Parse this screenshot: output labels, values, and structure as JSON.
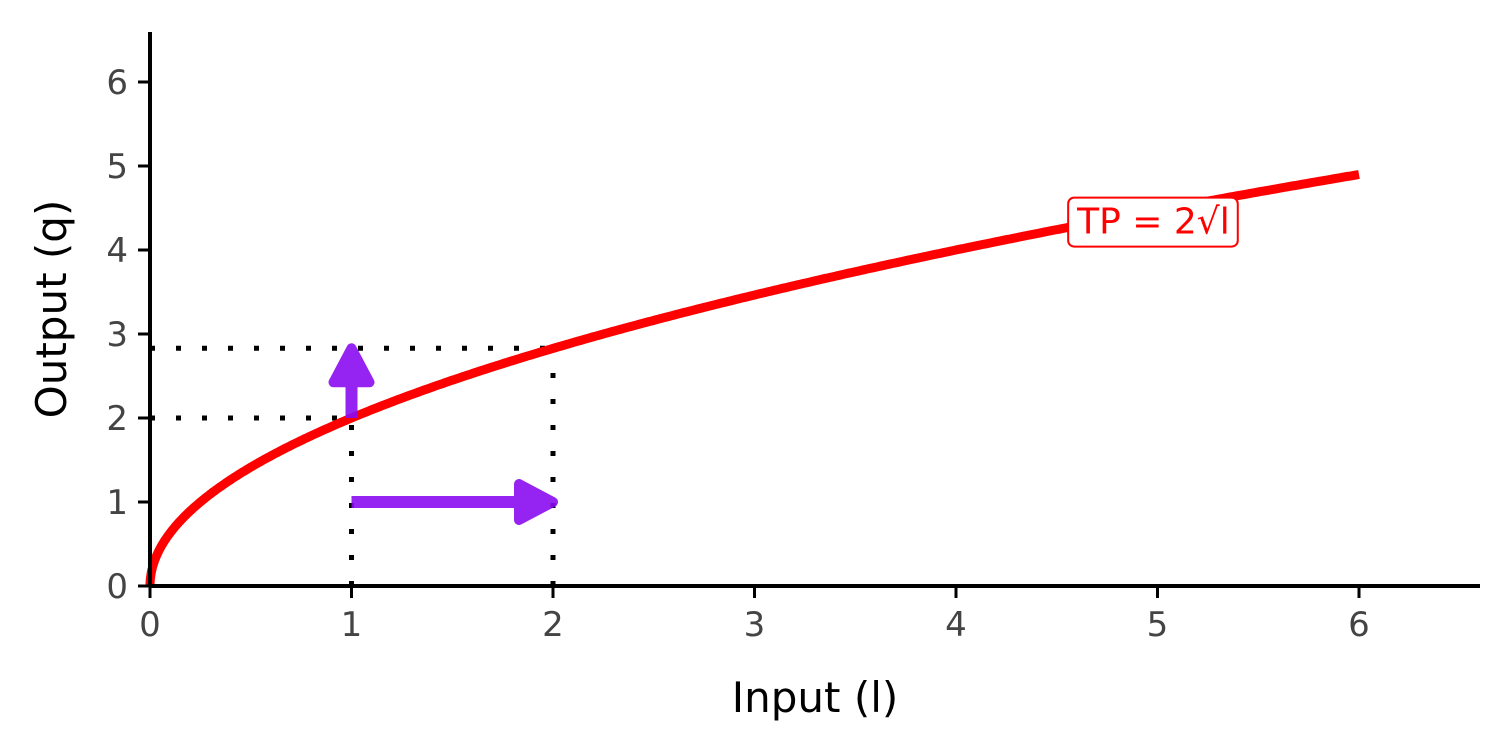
{
  "chart_data": {
    "type": "line",
    "title": "",
    "xlabel": "Input (l)",
    "ylabel": "Output (q)",
    "xlim": [
      0,
      6.6
    ],
    "ylim": [
      0,
      6.6
    ],
    "xticks": [
      "0",
      "1",
      "2",
      "3",
      "4",
      "5",
      "6"
    ],
    "yticks": [
      "0",
      "1",
      "2",
      "3",
      "4",
      "5",
      "6"
    ],
    "grid": false,
    "series": [
      {
        "name": "TP",
        "function": "2*sqrt(l)",
        "x_range": [
          0,
          6
        ],
        "color": "#ff0000"
      }
    ],
    "annotation": {
      "text": "TP = 2√l",
      "x": 4.98,
      "y": 4.35,
      "color": "#ff0000"
    },
    "guides": [
      {
        "type": "hline",
        "y": 2,
        "x_from": 0,
        "x_to": 1
      },
      {
        "type": "hline",
        "y": 2.83,
        "x_from": 0,
        "x_to": 2
      },
      {
        "type": "vline",
        "x": 1,
        "y_from": 0,
        "y_to": 2
      },
      {
        "type": "vline",
        "x": 2,
        "y_from": 0,
        "y_to": 2.83
      }
    ],
    "arrows": [
      {
        "from": [
          1,
          1
        ],
        "to": [
          2,
          1
        ],
        "color": "#8a0cf0"
      },
      {
        "from": [
          1,
          2
        ],
        "to": [
          1,
          2.83
        ],
        "color": "#8a0cf0"
      }
    ]
  }
}
